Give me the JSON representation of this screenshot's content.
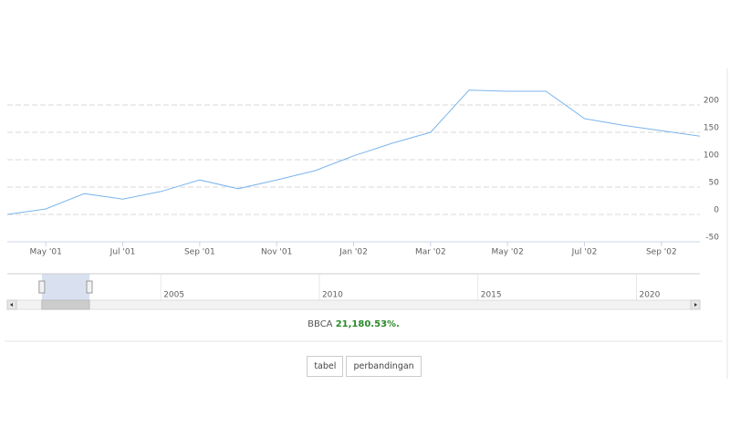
{
  "chart_data": {
    "type": "line",
    "x": [
      "2001-04",
      "2001-05",
      "2001-06",
      "2001-07",
      "2001-08",
      "2001-09",
      "2001-10",
      "2001-11",
      "2001-12",
      "2002-01",
      "2002-02",
      "2002-03",
      "2002-04",
      "2002-05",
      "2002-06",
      "2002-07",
      "2002-08",
      "2002-09",
      "2002-10"
    ],
    "values": [
      0,
      10,
      38,
      28,
      42,
      63,
      47,
      63,
      80,
      107,
      130,
      150,
      227,
      225,
      225,
      175,
      163,
      153,
      143
    ],
    "color": "#7cb5ec",
    "xlim": [
      "2001-04",
      "2002-10"
    ],
    "xticks": [
      {
        "value": "2001-05",
        "label": "May '01"
      },
      {
        "value": "2001-07",
        "label": "Jul '01"
      },
      {
        "value": "2001-09",
        "label": "Sep '01"
      },
      {
        "value": "2001-11",
        "label": "Nov '01"
      },
      {
        "value": "2002-01",
        "label": "Jan '02"
      },
      {
        "value": "2002-03",
        "label": "Mar '02"
      },
      {
        "value": "2002-05",
        "label": "May '02"
      },
      {
        "value": "2002-07",
        "label": "Jul '02"
      },
      {
        "value": "2002-09",
        "label": "Sep '02"
      }
    ],
    "ylim": [
      -50,
      250
    ],
    "yticks": [
      -50,
      0,
      50,
      100,
      150,
      200
    ],
    "grid": true,
    "navigator": {
      "xlim": [
        2000.16,
        2022
      ],
      "xticks": [
        2005,
        2010,
        2015,
        2020
      ]
    }
  },
  "summary": {
    "symbol": "BBCA",
    "change": "21,180.53%."
  },
  "buttons": [
    "tabel",
    "perbandingan"
  ]
}
